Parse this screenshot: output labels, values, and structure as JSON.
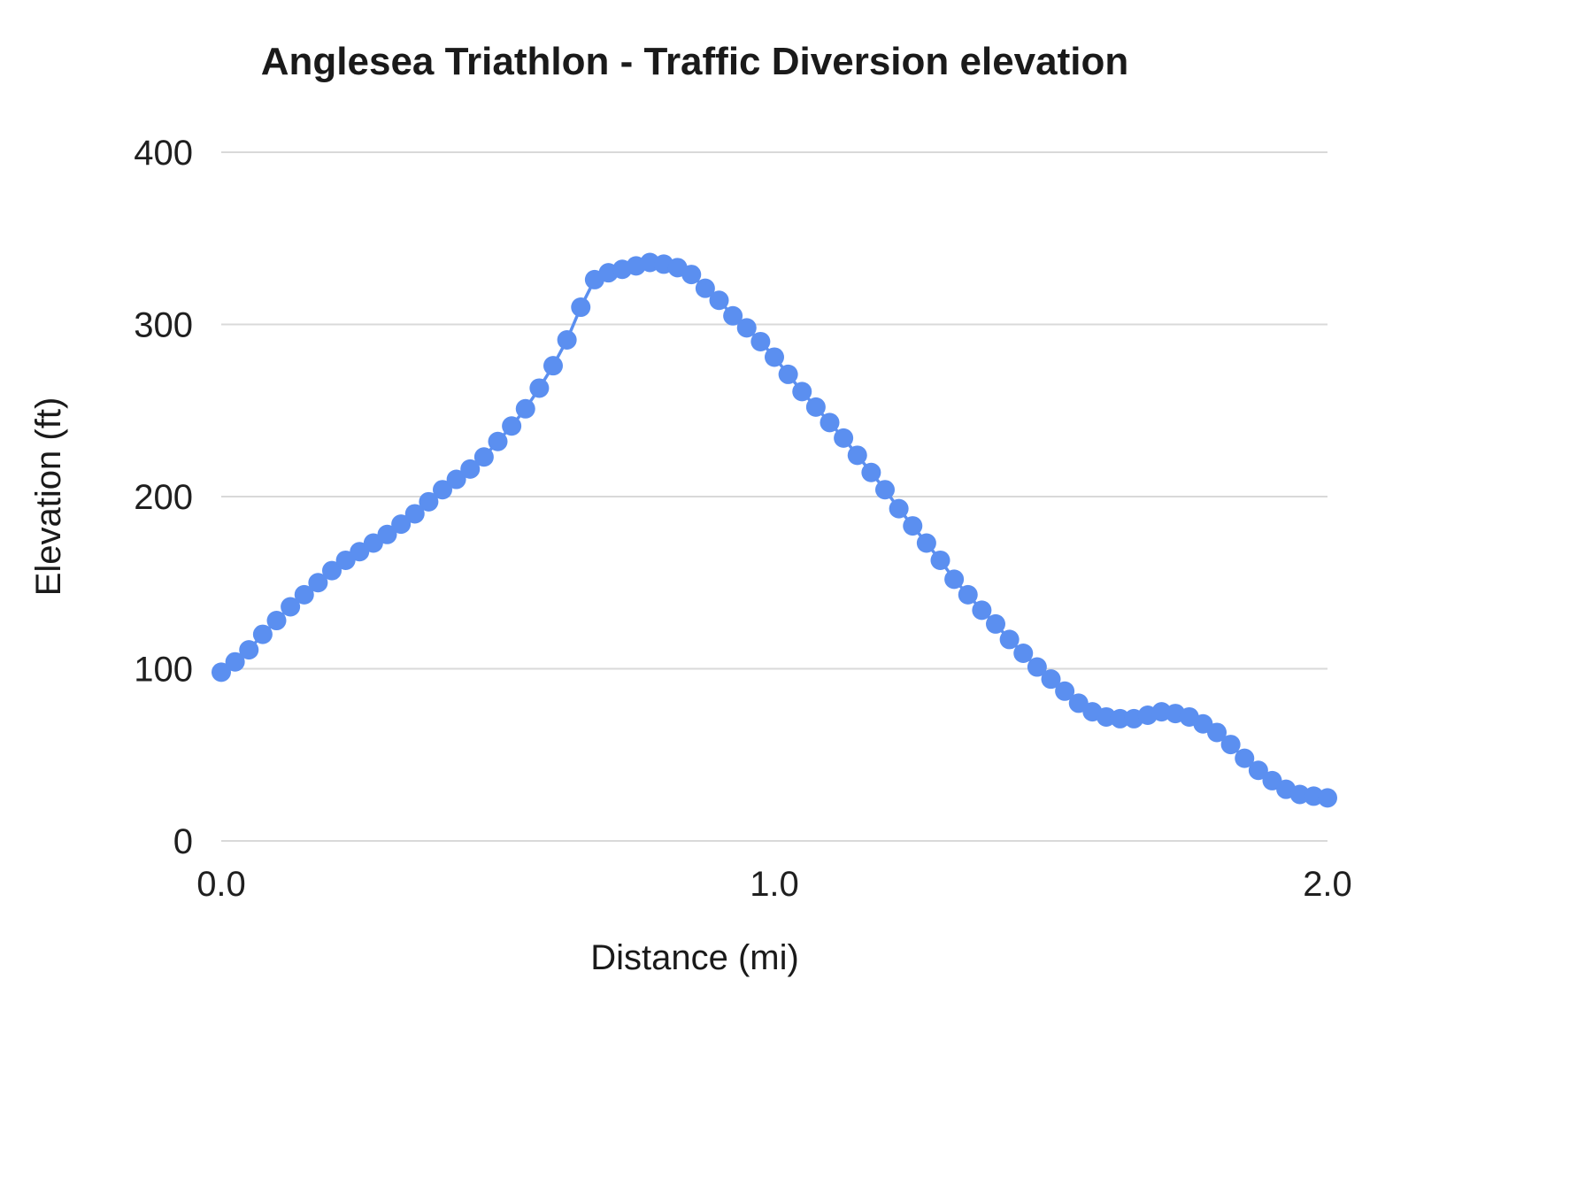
{
  "chart": {
    "title": "Anglesea Triathlon  - Traffic Diversion  elevation",
    "x_axis_label": "Distance (mi)",
    "y_axis_label": "Elevation (ft)"
  },
  "chart_data": {
    "type": "line",
    "title": "Anglesea Triathlon  - Traffic Diversion  elevation",
    "xlabel": "Distance (mi)",
    "ylabel": "Elevation (ft)",
    "xlim": [
      0,
      2
    ],
    "ylim": [
      0,
      400
    ],
    "grid": true,
    "legend": "none",
    "point_color": "#5b8ff0",
    "line_color": "#5b8ff0",
    "gridline_color": "#d9d9d9",
    "point_radius": 11,
    "x_ticks": [
      {
        "value": 0,
        "label": "0.0"
      },
      {
        "value": 1,
        "label": "1.0"
      },
      {
        "value": 2,
        "label": "2.0"
      }
    ],
    "y_ticks": [
      {
        "value": 0,
        "label": "0"
      },
      {
        "value": 100,
        "label": "100"
      },
      {
        "value": 200,
        "label": "200"
      },
      {
        "value": 300,
        "label": "300"
      },
      {
        "value": 400,
        "label": "400"
      }
    ],
    "x": [
      0,
      0.025,
      0.05,
      0.075,
      0.1,
      0.125,
      0.15,
      0.175,
      0.2,
      0.225,
      0.25,
      0.275,
      0.3,
      0.325,
      0.35,
      0.375,
      0.4,
      0.425,
      0.45,
      0.475,
      0.5,
      0.525,
      0.55,
      0.575,
      0.6,
      0.625,
      0.65,
      0.675,
      0.7,
      0.725,
      0.75,
      0.775,
      0.8,
      0.825,
      0.85,
      0.875,
      0.9,
      0.925,
      0.95,
      0.975,
      1,
      1.025,
      1.05,
      1.075,
      1.1,
      1.125,
      1.15,
      1.175,
      1.2,
      1.225,
      1.25,
      1.275,
      1.3,
      1.325,
      1.35,
      1.375,
      1.4,
      1.425,
      1.45,
      1.475,
      1.5,
      1.525,
      1.55,
      1.575,
      1.6,
      1.625,
      1.65,
      1.675,
      1.7,
      1.725,
      1.75,
      1.775,
      1.8,
      1.825,
      1.85,
      1.875,
      1.9,
      1.925,
      1.95,
      1.975,
      2
    ],
    "y": [
      98,
      104,
      111,
      120,
      128,
      136,
      143,
      150,
      157,
      163,
      168,
      173,
      178,
      184,
      190,
      197,
      204,
      210,
      216,
      223,
      232,
      241,
      251,
      263,
      276,
      291,
      310,
      326,
      330,
      332,
      334,
      336,
      335,
      333,
      329,
      321,
      314,
      305,
      298,
      290,
      281,
      271,
      261,
      252,
      243,
      234,
      224,
      214,
      204,
      193,
      183,
      173,
      163,
      152,
      143,
      134,
      126,
      117,
      109,
      101,
      94,
      87,
      80,
      75,
      72,
      71,
      71,
      73,
      75,
      74,
      72,
      68,
      63,
      56,
      48,
      41,
      35,
      30,
      27,
      26,
      25
    ]
  }
}
